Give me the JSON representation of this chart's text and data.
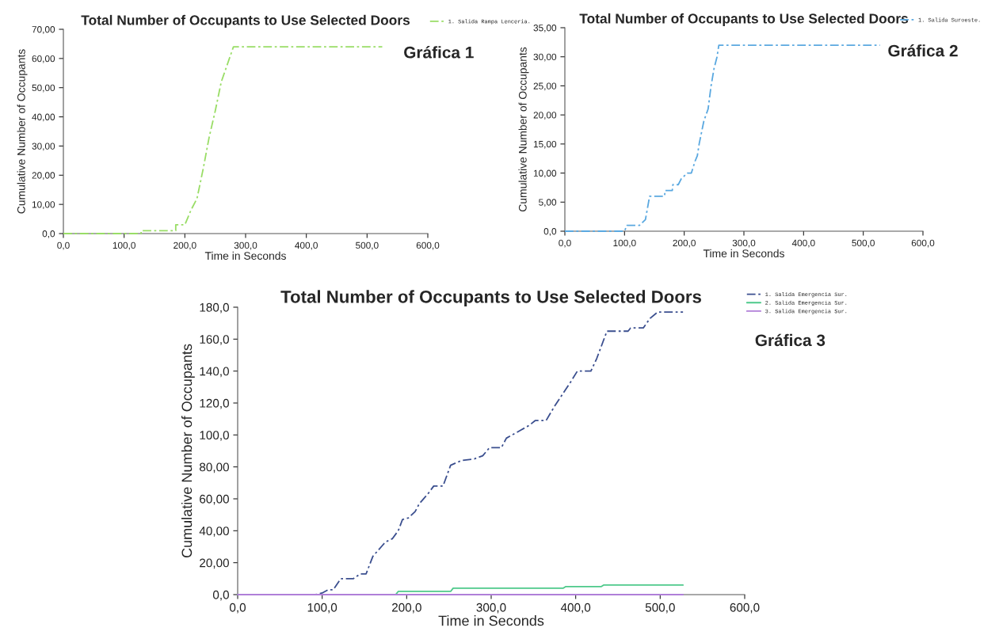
{
  "chart_data": [
    {
      "type": "line",
      "title": "Total Number of Occupants to Use Selected Doors",
      "xlabel": "Time in Seconds",
      "ylabel": "Cumulative Number of Occupants",
      "annotations": [
        "Gráfica 1"
      ],
      "legend": "top right",
      "line_style": "dashed",
      "grid": false,
      "xlim": [
        0,
        600
      ],
      "xticks": [
        {
          "value": 0,
          "label": "0,0"
        },
        {
          "value": 100,
          "label": "100,0"
        },
        {
          "value": 200,
          "label": "200,0"
        },
        {
          "value": 300,
          "label": "300,0"
        },
        {
          "value": 400,
          "label": "400,0"
        },
        {
          "value": 500,
          "label": "500,0"
        },
        {
          "value": 600,
          "label": "600,0"
        }
      ],
      "ylim": [
        0,
        70
      ],
      "yticks": [
        {
          "value": 0,
          "label": "0,0"
        },
        {
          "value": 10,
          "label": "10,00"
        },
        {
          "value": 20,
          "label": "20,00"
        },
        {
          "value": 30,
          "label": "30,00"
        },
        {
          "value": 40,
          "label": "40,00"
        },
        {
          "value": 50,
          "label": "50,00"
        },
        {
          "value": 60,
          "label": "60,00"
        },
        {
          "value": 70,
          "label": "70,00"
        }
      ],
      "series": [
        {
          "name": "1. Salida Rampa Lenceria.",
          "color": "#99dd66",
          "x": [
            0,
            128,
            128,
            185,
            185,
            200,
            210,
            220,
            230,
            240,
            250,
            260,
            270,
            280,
            525
          ],
          "values": [
            0,
            0,
            1,
            1,
            3,
            3,
            8,
            12,
            22,
            33,
            42,
            52,
            58,
            64,
            64
          ]
        }
      ]
    },
    {
      "type": "line",
      "title": "Total Number of Occupants to Use Selected Doors",
      "xlabel": "Time in Seconds",
      "ylabel": "Cumulative Number of Occupants",
      "annotations": [
        "Gráfica 2"
      ],
      "legend": "top right",
      "line_style": "dashed",
      "grid": false,
      "xlim": [
        0,
        600
      ],
      "xticks": [
        {
          "value": 0,
          "label": "0,0"
        },
        {
          "value": 100,
          "label": "100,0"
        },
        {
          "value": 200,
          "label": "200,0"
        },
        {
          "value": 300,
          "label": "300,0"
        },
        {
          "value": 400,
          "label": "400,0"
        },
        {
          "value": 500,
          "label": "500,0"
        },
        {
          "value": 600,
          "label": "600,0"
        }
      ],
      "ylim": [
        0,
        35
      ],
      "yticks": [
        {
          "value": 0,
          "label": "0,0"
        },
        {
          "value": 5,
          "label": "5,00"
        },
        {
          "value": 10,
          "label": "10,00"
        },
        {
          "value": 15,
          "label": "15,00"
        },
        {
          "value": 20,
          "label": "20,00"
        },
        {
          "value": 25,
          "label": "25,00"
        },
        {
          "value": 30,
          "label": "30,00"
        },
        {
          "value": 35,
          "label": "35,00"
        }
      ],
      "series": [
        {
          "name": "1. Salida Suroeste.",
          "color": "#5aa8e0",
          "x": [
            0,
            100,
            104,
            125,
            135,
            142,
            167,
            168,
            180,
            181,
            190,
            195,
            205,
            212,
            218,
            222,
            225,
            233,
            240,
            245,
            250,
            255,
            258,
            528
          ],
          "values": [
            0,
            0,
            1,
            1,
            2,
            6,
            6,
            7,
            7,
            8,
            8,
            9,
            10,
            10,
            12,
            13,
            15,
            19,
            21,
            25,
            28,
            30,
            32,
            32
          ]
        }
      ]
    },
    {
      "type": "line",
      "title": "Total Number of Occupants to Use Selected Doors",
      "xlabel": "Time in Seconds",
      "ylabel": "Cumulative Number of Occupants",
      "annotations": [
        "Gráfica 3"
      ],
      "legend": "top right",
      "grid": false,
      "xlim": [
        0,
        600
      ],
      "xticks": [
        {
          "value": 0,
          "label": "0,0"
        },
        {
          "value": 100,
          "label": "100,0"
        },
        {
          "value": 200,
          "label": "200,0"
        },
        {
          "value": 300,
          "label": "300,0"
        },
        {
          "value": 400,
          "label": "400,0"
        },
        {
          "value": 500,
          "label": "500,0"
        },
        {
          "value": 600,
          "label": "600,0"
        }
      ],
      "ylim": [
        0,
        180
      ],
      "yticks": [
        {
          "value": 0,
          "label": "0,0"
        },
        {
          "value": 20,
          "label": "20,00"
        },
        {
          "value": 40,
          "label": "40,00"
        },
        {
          "value": 60,
          "label": "60,00"
        },
        {
          "value": 80,
          "label": "80,00"
        },
        {
          "value": 100,
          "label": "100,0"
        },
        {
          "value": 120,
          "label": "120,0"
        },
        {
          "value": 140,
          "label": "140,0"
        },
        {
          "value": 160,
          "label": "160,0"
        },
        {
          "value": 180,
          "label": "180,0"
        }
      ],
      "series": [
        {
          "name": "1. Salida Emergencia Sur.",
          "color": "#3b4f8f",
          "line_style": "dashed",
          "x": [
            0,
            92,
            100,
            107,
            113,
            122,
            137,
            145,
            152,
            160,
            170,
            175,
            183,
            190,
            195,
            202,
            210,
            215,
            225,
            232,
            243,
            252,
            265,
            280,
            290,
            298,
            312,
            318,
            335,
            345,
            352,
            365,
            375,
            385,
            395,
            402,
            418,
            425,
            437,
            462,
            465,
            480,
            488,
            497,
            527
          ],
          "values": [
            0,
            0,
            1,
            3,
            3,
            10,
            10,
            13,
            13,
            24,
            30,
            33,
            35,
            40,
            47,
            48,
            52,
            57,
            63,
            68,
            68,
            81,
            84,
            85,
            87,
            92,
            92,
            98,
            103,
            106,
            109,
            109,
            118,
            126,
            134,
            140,
            140,
            148,
            165,
            165,
            167,
            167,
            173,
            177,
            177
          ]
        },
        {
          "name": "2. Salida Emergencia Sur.",
          "color": "#4dc98a",
          "line_style": "solid",
          "x": [
            0,
            187,
            190,
            252,
            255,
            385,
            388,
            430,
            433,
            527
          ],
          "values": [
            0,
            0,
            2,
            2,
            4,
            4,
            5,
            5,
            6,
            6
          ]
        },
        {
          "name": "3. Salida Emergencia Sur.",
          "color": "#b07fd8",
          "line_style": "solid",
          "x": [
            0,
            527
          ],
          "values": [
            0,
            0
          ]
        }
      ]
    }
  ]
}
